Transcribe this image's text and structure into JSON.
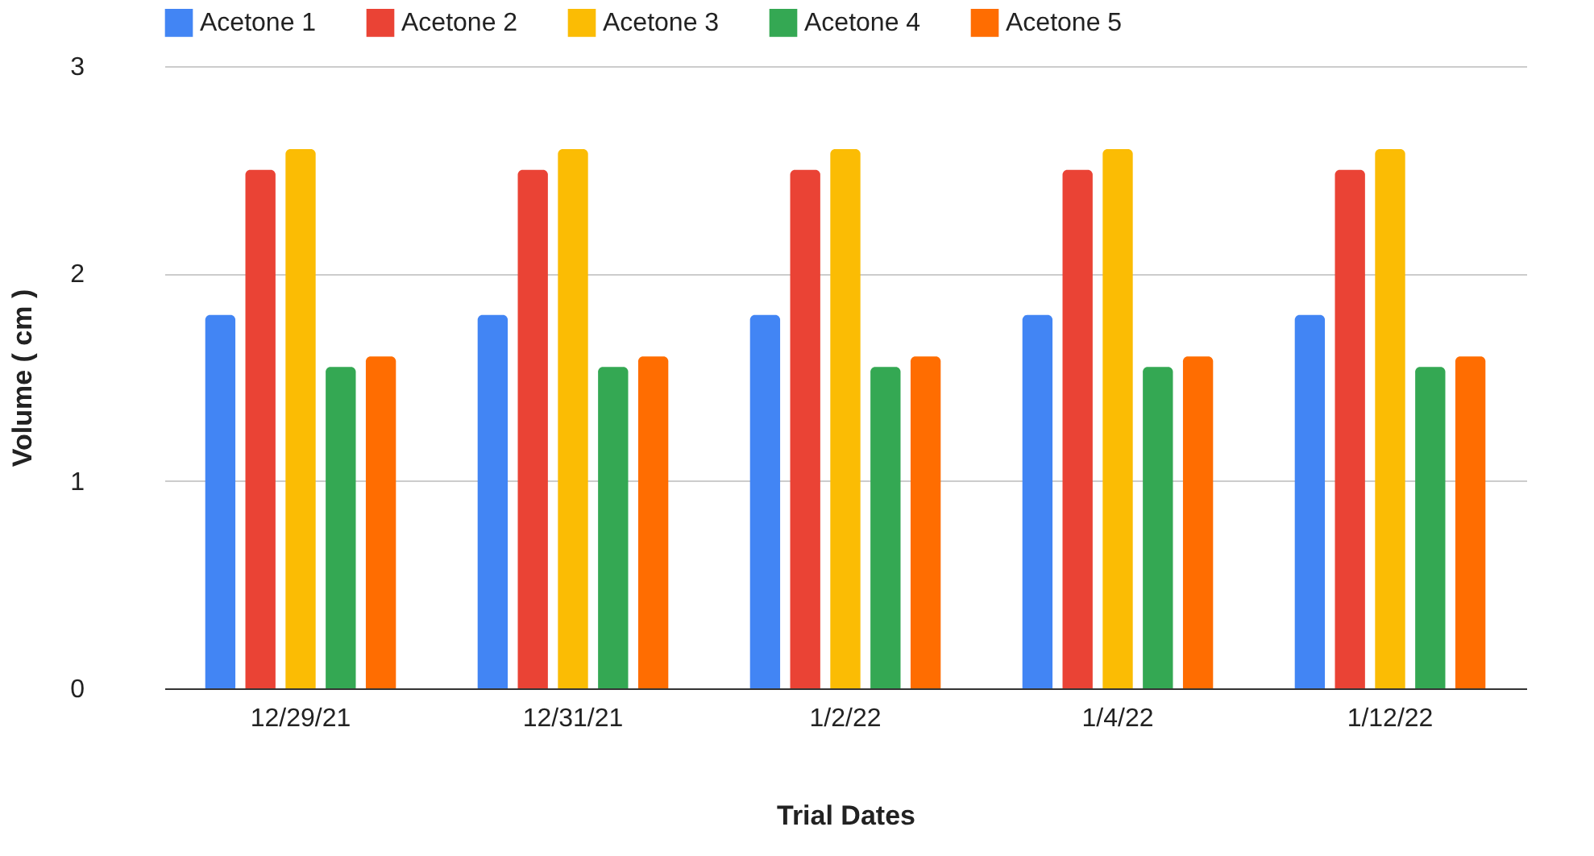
{
  "chart_data": {
    "type": "bar",
    "xlabel": "Trial Dates",
    "ylabel": "Volume ( cm )",
    "categories": [
      "12/29/21",
      "12/31/21",
      "1/2/22",
      "1/4/22",
      "1/12/22"
    ],
    "series": [
      {
        "name": "Acetone 1",
        "color": "#4285f4",
        "values": [
          1.8,
          1.8,
          1.8,
          1.8,
          1.8
        ]
      },
      {
        "name": "Acetone 2",
        "color": "#ea4335",
        "values": [
          2.5,
          2.5,
          2.5,
          2.5,
          2.5
        ]
      },
      {
        "name": "Acetone 3",
        "color": "#fbbc04",
        "values": [
          2.6,
          2.6,
          2.6,
          2.6,
          2.6
        ]
      },
      {
        "name": "Acetone 4",
        "color": "#34a853",
        "values": [
          1.55,
          1.55,
          1.55,
          1.55,
          1.55
        ]
      },
      {
        "name": "Acetone 5",
        "color": "#ff6d01",
        "values": [
          1.6,
          1.6,
          1.6,
          1.6,
          1.6
        ]
      }
    ],
    "ylim": [
      0,
      3
    ],
    "yticks": [
      0,
      1,
      2,
      3
    ],
    "grid": "y",
    "legend": "top"
  }
}
